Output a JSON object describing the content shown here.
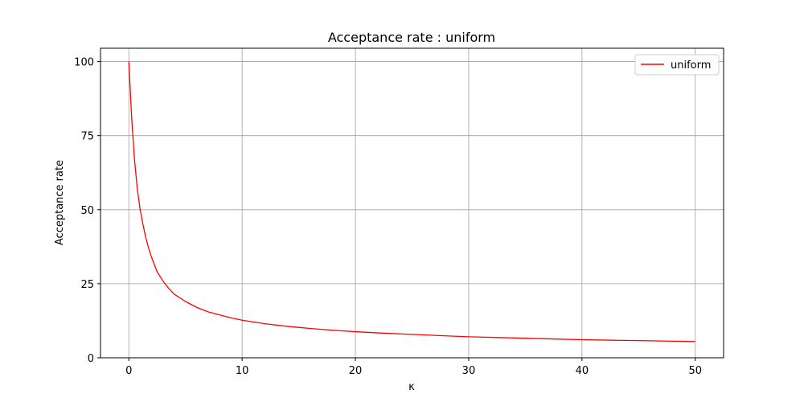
{
  "chart_data": {
    "type": "line",
    "title": "Acceptance rate : uniform",
    "xlabel": "κ",
    "ylabel": "Acceptance rate",
    "xlim": [
      -2.5,
      52.5
    ],
    "ylim": [
      0,
      104.5
    ],
    "x_ticks": [
      0,
      10,
      20,
      30,
      40,
      50
    ],
    "y_ticks": [
      0,
      25,
      50,
      75,
      100
    ],
    "grid": true,
    "legend_position": "top-right",
    "series": [
      {
        "name": "uniform",
        "color": "#ff0000",
        "x": [
          0,
          0.25,
          0.5,
          0.75,
          1,
          1.25,
          1.5,
          1.75,
          2,
          2.5,
          3,
          3.5,
          4,
          5,
          6,
          7,
          8,
          9,
          10,
          12,
          14,
          16,
          18,
          20,
          22,
          25,
          28,
          30,
          33,
          35,
          38,
          40,
          43,
          45,
          48,
          50
        ],
        "y": [
          100,
          81,
          67,
          57,
          50,
          45,
          40.5,
          37,
          34,
          29,
          26,
          23.5,
          21.5,
          19,
          17,
          15.5,
          14.5,
          13.5,
          12.7,
          11.5,
          10.6,
          9.9,
          9.3,
          8.8,
          8.4,
          7.9,
          7.4,
          7.1,
          6.8,
          6.6,
          6.3,
          6.1,
          5.9,
          5.8,
          5.6,
          5.5
        ]
      }
    ]
  }
}
